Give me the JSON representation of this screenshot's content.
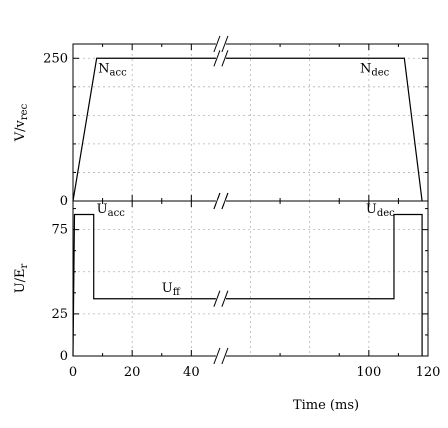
{
  "chart_data": [
    {
      "type": "line",
      "ylabel": "V/v_rec",
      "ylabel_main": "V/v",
      "ylabel_sub": "rec",
      "xlim": [
        0,
        120
      ],
      "ylim": [
        0,
        275
      ],
      "yticks": [
        0,
        250
      ],
      "x_break": [
        45,
        55
      ],
      "grid": true,
      "series": [
        {
          "x": [
            0,
            8,
            112,
            118
          ],
          "y": [
            0,
            250,
            250,
            0
          ]
        }
      ],
      "annotations": [
        {
          "text_main": "N",
          "text_sub": "acc",
          "x": 8.5,
          "y": 225
        },
        {
          "text_main": "N",
          "text_sub": "dec",
          "x": 97,
          "y": 225
        }
      ]
    },
    {
      "type": "line",
      "ylabel": "U/E_r",
      "ylabel_main": "U/E",
      "ylabel_sub": "r",
      "xlabel": "Time (ms)",
      "xlim": [
        0,
        120
      ],
      "ylim": [
        0,
        92
      ],
      "yticks": [
        0,
        25,
        75
      ],
      "xticks": [
        0,
        20,
        40,
        100,
        120
      ],
      "x_break": [
        45,
        55
      ],
      "grid": true,
      "series": [
        {
          "x": [
            0,
            0.5,
            7,
            7,
            108.5,
            108.5,
            118,
            118
          ],
          "y": [
            0,
            84,
            84,
            34,
            34,
            84,
            84,
            0
          ]
        }
      ],
      "annotations": [
        {
          "text_main": "U",
          "text_sub": "acc",
          "x": 8,
          "y": 85
        },
        {
          "text_main": "U",
          "text_sub": "ff",
          "x": 30,
          "y": 38
        },
        {
          "text_main": "U",
          "text_sub": "dec",
          "x": 99,
          "y": 85
        }
      ]
    }
  ]
}
